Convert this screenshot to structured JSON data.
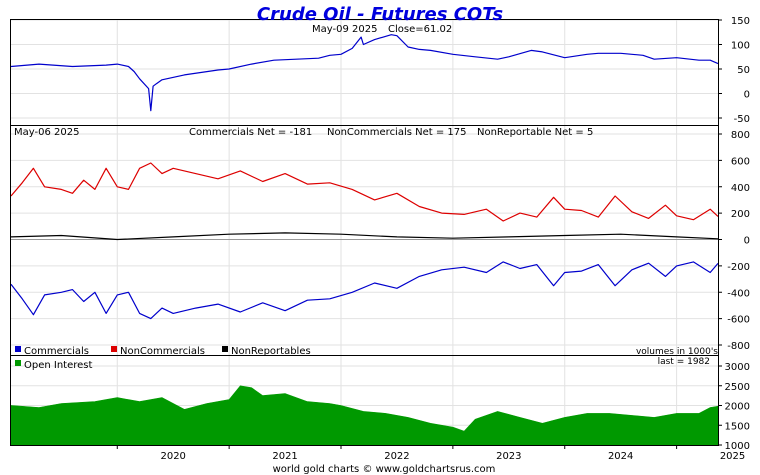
{
  "chart_data": [
    {
      "type": "line",
      "title": "Crude Oil - Futures COTs",
      "info_left": "May-09  2025",
      "info_close": "Close=61.02",
      "ylim": [
        -50,
        150
      ],
      "yticks": [
        "150",
        "100",
        "50",
        "0",
        "-50"
      ],
      "series": [
        {
          "name": "Close",
          "color": "#0000cc",
          "x": [
            2019.05,
            2019.3,
            2019.6,
            2019.9,
            2020.0,
            2020.1,
            2020.15,
            2020.2,
            2020.28,
            2020.3,
            2020.32,
            2020.35,
            2020.4,
            2020.6,
            2020.9,
            2021.0,
            2021.2,
            2021.4,
            2021.6,
            2021.8,
            2021.9,
            2022.0,
            2022.1,
            2022.18,
            2022.2,
            2022.3,
            2022.45,
            2022.5,
            2022.6,
            2022.7,
            2022.8,
            2023.0,
            2023.2,
            2023.4,
            2023.5,
            2023.7,
            2023.8,
            2024.0,
            2024.2,
            2024.3,
            2024.5,
            2024.7,
            2024.8,
            2025.0,
            2025.2,
            2025.3,
            2025.37
          ],
          "y": [
            55,
            60,
            55,
            58,
            60,
            55,
            45,
            30,
            10,
            -35,
            15,
            20,
            28,
            38,
            48,
            50,
            60,
            68,
            70,
            72,
            78,
            80,
            92,
            115,
            100,
            110,
            120,
            118,
            95,
            90,
            88,
            80,
            75,
            70,
            75,
            88,
            85,
            73,
            80,
            82,
            82,
            78,
            70,
            73,
            68,
            68,
            61
          ]
        }
      ]
    },
    {
      "type": "line",
      "date_label": "May-06  2025",
      "summary": [
        "Commercials Net = -181",
        "NonCommercials Net = 175",
        "NonReportable Net = 5"
      ],
      "ylim": [
        -800,
        800
      ],
      "yticks": [
        "800",
        "600",
        "400",
        "200",
        "0",
        "-200",
        "-400",
        "-600",
        "-800"
      ],
      "legend_position": "bottom-left",
      "legend": [
        "Commercials",
        "NonCommercials",
        "NonReportables"
      ],
      "units_note": "volumes in 1000's",
      "series": [
        {
          "name": "NonCommercials",
          "color": "#dd0000",
          "x": [
            2019.05,
            2019.15,
            2019.25,
            2019.35,
            2019.5,
            2019.6,
            2019.7,
            2019.8,
            2019.9,
            2020.0,
            2020.1,
            2020.2,
            2020.3,
            2020.4,
            2020.5,
            2020.7,
            2020.9,
            2021.1,
            2021.3,
            2021.5,
            2021.7,
            2021.9,
            2022.1,
            2022.3,
            2022.5,
            2022.7,
            2022.9,
            2023.1,
            2023.3,
            2023.45,
            2023.6,
            2023.75,
            2023.9,
            2024.0,
            2024.15,
            2024.3,
            2024.45,
            2024.6,
            2024.75,
            2024.9,
            2025.0,
            2025.15,
            2025.3,
            2025.37
          ],
          "y": [
            330,
            430,
            540,
            400,
            380,
            350,
            450,
            380,
            540,
            400,
            380,
            540,
            580,
            500,
            540,
            500,
            460,
            520,
            440,
            500,
            420,
            430,
            380,
            300,
            350,
            250,
            200,
            190,
            230,
            140,
            200,
            170,
            320,
            230,
            220,
            170,
            330,
            210,
            160,
            260,
            180,
            150,
            230,
            175
          ]
        },
        {
          "name": "NonReportables",
          "color": "#000000",
          "x": [
            2019.05,
            2019.5,
            2020.0,
            2020.5,
            2021.0,
            2021.5,
            2022.0,
            2022.5,
            2023.0,
            2023.5,
            2024.0,
            2024.5,
            2025.0,
            2025.37
          ],
          "y": [
            20,
            30,
            0,
            20,
            40,
            50,
            40,
            20,
            10,
            20,
            30,
            40,
            20,
            5
          ]
        },
        {
          "name": "Commercials",
          "color": "#0000cc",
          "x": [
            2019.05,
            2019.15,
            2019.25,
            2019.35,
            2019.5,
            2019.6,
            2019.7,
            2019.8,
            2019.9,
            2020.0,
            2020.1,
            2020.2,
            2020.3,
            2020.4,
            2020.5,
            2020.7,
            2020.9,
            2021.1,
            2021.3,
            2021.5,
            2021.7,
            2021.9,
            2022.1,
            2022.3,
            2022.5,
            2022.7,
            2022.9,
            2023.1,
            2023.3,
            2023.45,
            2023.6,
            2023.75,
            2023.9,
            2024.0,
            2024.15,
            2024.3,
            2024.45,
            2024.6,
            2024.75,
            2024.9,
            2025.0,
            2025.15,
            2025.3,
            2025.37
          ],
          "y": [
            -340,
            -450,
            -570,
            -420,
            -400,
            -380,
            -470,
            -400,
            -560,
            -420,
            -400,
            -560,
            -600,
            -520,
            -560,
            -520,
            -490,
            -550,
            -480,
            -540,
            -460,
            -450,
            -400,
            -330,
            -370,
            -280,
            -230,
            -210,
            -250,
            -170,
            -220,
            -190,
            -350,
            -250,
            -240,
            -190,
            -350,
            -230,
            -180,
            -280,
            -200,
            -170,
            -250,
            -181
          ]
        }
      ]
    },
    {
      "type": "area",
      "legend": [
        "Open Interest"
      ],
      "last_label": "last = 1982",
      "ylim": [
        1000,
        3000
      ],
      "yticks": [
        "3000",
        "2500",
        "2000",
        "1500",
        "1000"
      ],
      "xticks": [
        "2020",
        "2021",
        "2022",
        "2023",
        "2024",
        "2025"
      ],
      "xlim": [
        2019.05,
        2025.37
      ],
      "series": [
        {
          "name": "Open Interest",
          "color": "#009900",
          "x": [
            2019.05,
            2019.3,
            2019.5,
            2019.8,
            2020.0,
            2020.2,
            2020.4,
            2020.6,
            2020.8,
            2021.0,
            2021.1,
            2021.2,
            2021.3,
            2021.5,
            2021.7,
            2021.9,
            2022.0,
            2022.2,
            2022.4,
            2022.6,
            2022.8,
            2023.0,
            2023.1,
            2023.2,
            2023.4,
            2023.6,
            2023.8,
            2024.0,
            2024.2,
            2024.4,
            2024.6,
            2024.8,
            2025.0,
            2025.2,
            2025.3,
            2025.37
          ],
          "y": [
            2000,
            1950,
            2050,
            2100,
            2200,
            2100,
            2200,
            1900,
            2050,
            2150,
            2500,
            2450,
            2250,
            2300,
            2100,
            2050,
            2000,
            1850,
            1800,
            1700,
            1550,
            1450,
            1350,
            1650,
            1850,
            1700,
            1550,
            1700,
            1800,
            1800,
            1750,
            1700,
            1800,
            1800,
            1950,
            1982
          ]
        }
      ]
    }
  ],
  "footer": "world gold charts © www.goldchartsrus.com",
  "colors": {
    "commercials": "#0000cc",
    "noncommercials": "#dd0000",
    "nonreportables": "#000000",
    "open_interest": "#009900",
    "title": "#0000dd"
  }
}
